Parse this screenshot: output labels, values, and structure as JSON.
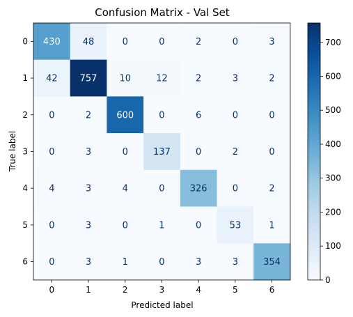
{
  "chart_data": {
    "type": "heatmap",
    "title": "Confusion Matrix - Val Set",
    "xlabel": "Predicted label",
    "ylabel": "True label",
    "x_categories": [
      "0",
      "1",
      "2",
      "3",
      "4",
      "5",
      "6"
    ],
    "y_categories": [
      "0",
      "1",
      "2",
      "3",
      "4",
      "5",
      "6"
    ],
    "values": [
      [
        430,
        48,
        0,
        0,
        2,
        0,
        3
      ],
      [
        42,
        757,
        10,
        12,
        2,
        3,
        2
      ],
      [
        0,
        2,
        600,
        0,
        6,
        0,
        0
      ],
      [
        0,
        3,
        0,
        137,
        0,
        2,
        0
      ],
      [
        4,
        3,
        4,
        0,
        326,
        0,
        2
      ],
      [
        0,
        3,
        0,
        1,
        0,
        53,
        1
      ],
      [
        0,
        3,
        1,
        0,
        3,
        3,
        354
      ]
    ],
    "colormap": "Blues",
    "colors": {
      "low": "#f7fbff",
      "high": "#08306b"
    },
    "colorbar": {
      "range": [
        0,
        757
      ],
      "ticks": [
        0,
        100,
        200,
        300,
        400,
        500,
        600,
        700
      ]
    },
    "grid": false
  }
}
